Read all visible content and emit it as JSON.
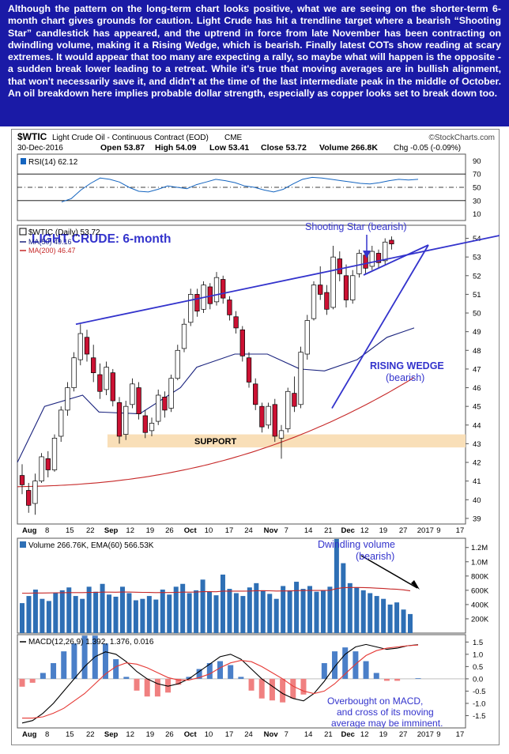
{
  "commentary": "Although the pattern on the long-term chart looks positive, what we are seeing on the shorter-term 6-month chart gives grounds for caution. Light Crude has hit a trendline target where a bearish “Shooting Star” candlestick has appeared, and the uptrend in force from late November has been contracting on dwindling volume, making it a Rising Wedge, which is bearish. Finally latest COTs show reading at scary extremes. It would appear that too many are expecting a rally, so maybe what will happen is the opposite - a sudden break lower leading to a retreat. While it's true that moving averages are in bullish alignment, that won't necessarily save it, and didn't at the time of the last intermediate peak in the middle of October. An oil breakdown here implies probable dollar strength, especially as copper looks set to break down too.",
  "header": {
    "symbol": "$WTIC",
    "name": "Light Crude Oil - Continuous Contract (EOD)",
    "exchange": "CME",
    "date": "30-Dec-2016",
    "credit": "©StockCharts.com",
    "open": "Open 53.87",
    "high": "High 54.09",
    "low": "Low 53.41",
    "close": "Close 53.72",
    "volume": "Volume 266.8K",
    "change": "Chg -0.05 (-0.09%)"
  },
  "colors": {
    "up_candle": "#ffffff",
    "down_candle": "#cc1133",
    "candle_outline": "#000000",
    "ma50": "#1a237e",
    "ma200": "#c62828",
    "trendline": "#3333cc",
    "annotation": "#3333cc",
    "support_band": "#f9dfb8",
    "volume_bar": "#2e6fb5",
    "volume_ema": "#c62828",
    "macd_line": "#000000",
    "signal_line": "#e53935",
    "hist_pos": "#4a7fc8",
    "hist_neg": "#f08080",
    "rsi_line": "#1565c0"
  },
  "chart_data": {
    "type": "candlestick",
    "x_ticks": [
      "Aug",
      "8",
      "15",
      "22",
      "Sep",
      "12",
      "19",
      "26",
      "Oct",
      "10",
      "17",
      "24",
      "Nov",
      "7",
      "14",
      "21",
      "Dec",
      "12",
      "19",
      "27",
      "2017",
      "9",
      "17"
    ],
    "rsi": {
      "label": "RSI(14) 62.12",
      "y_ticks": [
        90,
        70,
        50,
        30,
        10
      ],
      "range": [
        0,
        100
      ],
      "levels": [
        70,
        50,
        30
      ],
      "values": [
        28,
        33,
        46,
        56,
        64,
        62,
        58,
        50,
        44,
        43,
        47,
        52,
        50,
        48,
        54,
        58,
        62,
        60,
        57,
        52,
        50,
        46,
        43,
        47,
        55,
        62,
        65,
        64,
        62,
        60,
        58,
        56,
        55,
        57,
        60,
        62,
        61,
        62
      ]
    },
    "price": {
      "label": "$WTIC (Daily) 53.72",
      "ma50_label": "MA(50) 49.16",
      "ma200_label": "MA(200) 46.47",
      "y_ticks": [
        54,
        53,
        52,
        51,
        50,
        49,
        48,
        47,
        46,
        45,
        44,
        43,
        42,
        41,
        40,
        39
      ],
      "range": [
        38.7,
        54.7
      ],
      "candles": [
        {
          "o": 41.3,
          "h": 41.9,
          "l": 40.3,
          "c": 40.8
        },
        {
          "o": 40.5,
          "h": 40.9,
          "l": 39.3,
          "c": 39.7
        },
        {
          "o": 39.8,
          "h": 41.4,
          "l": 39.2,
          "c": 41.0
        },
        {
          "o": 41.0,
          "h": 42.5,
          "l": 40.9,
          "c": 42.3
        },
        {
          "o": 42.2,
          "h": 42.6,
          "l": 41.2,
          "c": 41.6
        },
        {
          "o": 41.6,
          "h": 43.5,
          "l": 41.5,
          "c": 43.3
        },
        {
          "o": 43.4,
          "h": 45.0,
          "l": 43.1,
          "c": 44.8
        },
        {
          "o": 44.8,
          "h": 46.3,
          "l": 44.5,
          "c": 46.0
        },
        {
          "o": 46.0,
          "h": 47.9,
          "l": 45.8,
          "c": 47.6
        },
        {
          "o": 47.5,
          "h": 49.4,
          "l": 47.2,
          "c": 48.9
        },
        {
          "o": 48.7,
          "h": 49.1,
          "l": 47.4,
          "c": 47.8
        },
        {
          "o": 47.6,
          "h": 48.3,
          "l": 46.3,
          "c": 46.8
        },
        {
          "o": 46.7,
          "h": 47.3,
          "l": 45.4,
          "c": 45.8
        },
        {
          "o": 45.9,
          "h": 47.4,
          "l": 45.6,
          "c": 47.1
        },
        {
          "o": 46.8,
          "h": 47.0,
          "l": 45.0,
          "c": 45.3
        },
        {
          "o": 45.2,
          "h": 45.5,
          "l": 43.0,
          "c": 43.4
        },
        {
          "o": 43.5,
          "h": 45.3,
          "l": 43.2,
          "c": 45.0
        },
        {
          "o": 45.1,
          "h": 46.5,
          "l": 44.9,
          "c": 46.2
        },
        {
          "o": 46.0,
          "h": 46.3,
          "l": 44.3,
          "c": 44.6
        },
        {
          "o": 44.5,
          "h": 44.8,
          "l": 43.3,
          "c": 43.6
        },
        {
          "o": 43.7,
          "h": 44.4,
          "l": 43.4,
          "c": 44.1
        },
        {
          "o": 44.2,
          "h": 45.9,
          "l": 44.0,
          "c": 45.6
        },
        {
          "o": 45.5,
          "h": 45.8,
          "l": 44.4,
          "c": 44.8
        },
        {
          "o": 44.9,
          "h": 46.7,
          "l": 44.7,
          "c": 46.5
        },
        {
          "o": 46.5,
          "h": 48.3,
          "l": 46.4,
          "c": 48.0
        },
        {
          "o": 48.1,
          "h": 49.7,
          "l": 47.9,
          "c": 49.4
        },
        {
          "o": 49.5,
          "h": 51.3,
          "l": 49.3,
          "c": 51.0
        },
        {
          "o": 51.0,
          "h": 51.3,
          "l": 49.8,
          "c": 50.1
        },
        {
          "o": 50.2,
          "h": 51.7,
          "l": 50.0,
          "c": 51.5
        },
        {
          "o": 51.4,
          "h": 51.6,
          "l": 50.2,
          "c": 50.5
        },
        {
          "o": 50.6,
          "h": 52.2,
          "l": 50.4,
          "c": 51.9
        },
        {
          "o": 51.8,
          "h": 52.0,
          "l": 50.5,
          "c": 50.8
        },
        {
          "o": 50.7,
          "h": 50.9,
          "l": 49.6,
          "c": 49.9
        },
        {
          "o": 49.8,
          "h": 50.1,
          "l": 48.9,
          "c": 49.2
        },
        {
          "o": 49.1,
          "h": 49.3,
          "l": 47.4,
          "c": 47.7
        },
        {
          "o": 47.6,
          "h": 47.9,
          "l": 46.0,
          "c": 46.3
        },
        {
          "o": 46.2,
          "h": 46.5,
          "l": 44.8,
          "c": 45.1
        },
        {
          "o": 45.0,
          "h": 45.2,
          "l": 43.6,
          "c": 43.9
        },
        {
          "o": 44.0,
          "h": 45.2,
          "l": 43.8,
          "c": 45.0
        },
        {
          "o": 45.1,
          "h": 45.4,
          "l": 43.1,
          "c": 43.4
        },
        {
          "o": 43.3,
          "h": 44.0,
          "l": 42.2,
          "c": 43.7
        },
        {
          "o": 43.8,
          "h": 46.0,
          "l": 43.6,
          "c": 45.8
        },
        {
          "o": 45.7,
          "h": 46.6,
          "l": 44.7,
          "c": 45.0
        },
        {
          "o": 45.1,
          "h": 48.2,
          "l": 44.9,
          "c": 47.9
        },
        {
          "o": 47.8,
          "h": 49.9,
          "l": 47.5,
          "c": 49.6
        },
        {
          "o": 49.7,
          "h": 51.7,
          "l": 49.6,
          "c": 51.5
        },
        {
          "o": 51.5,
          "h": 52.5,
          "l": 50.7,
          "c": 51.0
        },
        {
          "o": 51.1,
          "h": 51.5,
          "l": 49.9,
          "c": 50.2
        },
        {
          "o": 50.3,
          "h": 53.6,
          "l": 50.2,
          "c": 53.0
        },
        {
          "o": 52.9,
          "h": 53.3,
          "l": 51.7,
          "c": 52.1
        },
        {
          "o": 52.0,
          "h": 52.6,
          "l": 50.3,
          "c": 50.7
        },
        {
          "o": 50.7,
          "h": 52.3,
          "l": 50.5,
          "c": 52.0
        },
        {
          "o": 52.1,
          "h": 53.4,
          "l": 51.9,
          "c": 53.2
        },
        {
          "o": 53.1,
          "h": 53.3,
          "l": 52.1,
          "c": 52.4
        },
        {
          "o": 52.5,
          "h": 53.6,
          "l": 52.3,
          "c": 53.3
        },
        {
          "o": 53.2,
          "h": 53.4,
          "l": 52.4,
          "c": 52.7
        },
        {
          "o": 52.8,
          "h": 54.0,
          "l": 52.6,
          "c": 53.8
        },
        {
          "o": 53.9,
          "h": 54.1,
          "l": 53.4,
          "c": 53.7
        }
      ]
    },
    "volume": {
      "label": "Volume 266.76K, EMA(60) 566.53K",
      "y_ticks": [
        "1.2M",
        "1.0M",
        "800K",
        "600K",
        "400K",
        "200K"
      ],
      "tick_values": [
        1200000,
        1000000,
        800000,
        600000,
        400000,
        200000
      ],
      "range": [
        0,
        1330000
      ],
      "values": [
        420000,
        520000,
        610000,
        480000,
        450000,
        560000,
        600000,
        640000,
        520000,
        480000,
        650000,
        580000,
        690000,
        540000,
        510000,
        650000,
        560000,
        460000,
        480000,
        520000,
        470000,
        610000,
        540000,
        650000,
        690000,
        560000,
        600000,
        750000,
        580000,
        530000,
        820000,
        620000,
        560000,
        520000,
        640000,
        700000,
        600000,
        550000,
        480000,
        660000,
        600000,
        720000,
        620000,
        660000,
        580000,
        600000,
        650000,
        1320000,
        980000,
        700000,
        640000,
        600000,
        560000,
        520000,
        480000,
        400000,
        430000,
        330000,
        267000
      ],
      "ema": [
        560000,
        560000,
        562000,
        562000,
        563000,
        565000,
        566000,
        568000,
        568000,
        567000,
        570000,
        571000,
        574000,
        574000,
        573000,
        575000,
        575000,
        573000,
        571000,
        570000,
        568000,
        569000,
        569000,
        571000,
        574000,
        574000,
        575000,
        581000,
        581000,
        580000,
        588000,
        589000,
        589000,
        588000,
        590000,
        594000,
        594000,
        593000,
        590000,
        591000,
        591000,
        595000,
        596000,
        598000,
        597000,
        597000,
        599000,
        624000,
        636000,
        639000,
        639000,
        638000,
        635000,
        630000,
        625000,
        619000,
        614000,
        606000,
        592000
      ]
    },
    "macd": {
      "label": "MACD(12,26,9) 1.392, 1.376, 0.016",
      "y_ticks": [
        1.5,
        1.0,
        0.5,
        0.0,
        -0.5,
        -1.0,
        -1.5
      ],
      "range": [
        -2.0,
        1.8
      ],
      "macd": [
        -1.8,
        -1.7,
        -1.4,
        -1.0,
        -0.5,
        0.0,
        0.5,
        0.9,
        1.1,
        1.0,
        0.7,
        0.3,
        0.0,
        -0.2,
        -0.3,
        -0.2,
        0.0,
        0.3,
        0.6,
        0.9,
        1.0,
        0.8,
        0.4,
        0.0,
        -0.3,
        -0.6,
        -0.8,
        -0.9,
        -0.6,
        -0.1,
        0.5,
        1.0,
        1.3,
        1.4,
        1.3,
        1.2,
        1.25,
        1.35,
        1.392
      ],
      "signal": [
        -1.6,
        -1.6,
        -1.55,
        -1.4,
        -1.2,
        -0.9,
        -0.6,
        -0.2,
        0.2,
        0.5,
        0.65,
        0.6,
        0.45,
        0.25,
        0.05,
        -0.05,
        -0.05,
        0.05,
        0.2,
        0.45,
        0.65,
        0.75,
        0.7,
        0.5,
        0.25,
        0.0,
        -0.3,
        -0.5,
        -0.6,
        -0.5,
        -0.2,
        0.2,
        0.6,
        0.95,
        1.15,
        1.25,
        1.3,
        1.35,
        1.376
      ]
    },
    "annotations": {
      "title": "LIGHT CRUDE: 6-month",
      "shooting_star": "Shooting Star (bearish)",
      "support": "SUPPORT",
      "wedge_1": "RISING WEDGE",
      "wedge_2": "(bearish)",
      "volume_1": "Dwindling volume",
      "volume_2": "(bearish)",
      "macd_1": "Overbought on MACD,",
      "macd_2": "and cross of its moving",
      "macd_3": "average may be imminent."
    }
  }
}
